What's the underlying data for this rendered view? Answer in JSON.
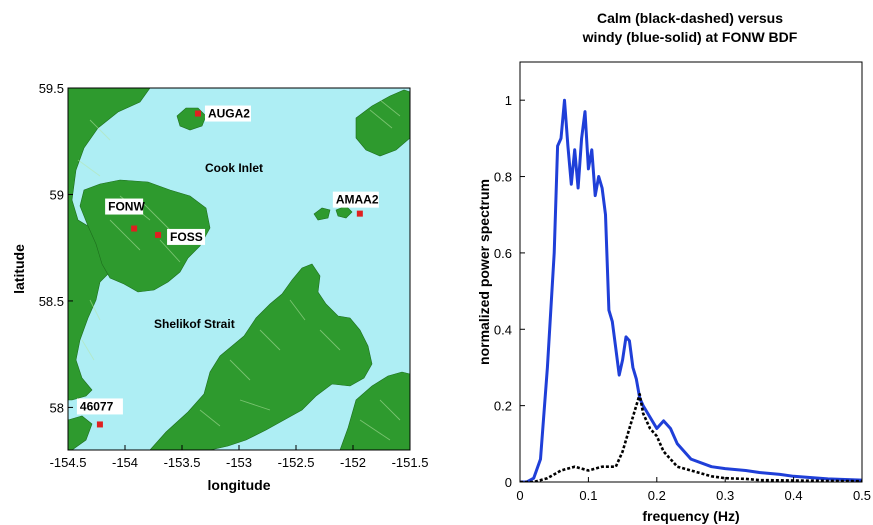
{
  "map": {
    "xlabel": "longitude",
    "ylabel": "latitude",
    "xticks": [
      "-154.5",
      "-154",
      "-153.5",
      "-153",
      "-152.5",
      "-152",
      "-151.5"
    ],
    "yticks": [
      "59.5",
      "59",
      "58.5",
      "58"
    ],
    "xlim": [
      -154.5,
      -151.5
    ],
    "ylim": [
      57.8,
      59.5
    ],
    "water_color": "#aeeef4",
    "land_color": "#2e9a2e",
    "station_color": "#e02020",
    "stations": [
      {
        "name": "AUGA2",
        "lon": -153.36,
        "lat": 59.38
      },
      {
        "name": "AMAA2",
        "lon": -151.94,
        "lat": 58.91
      },
      {
        "name": "FONW",
        "lon": -153.92,
        "lat": 58.84
      },
      {
        "name": "FOSS",
        "lon": -153.71,
        "lat": 58.81
      },
      {
        "name": "46077",
        "lon": -154.22,
        "lat": 57.92
      }
    ],
    "place_labels": [
      "Cook Inlet",
      "Shelikof Strait"
    ]
  },
  "chart_data": {
    "type": "line",
    "title": "Calm (black-dashed) versus windy (blue-solid) at FONW BDF",
    "title_lines": [
      "Calm (black-dashed) versus",
      "windy (blue-solid) at FONW BDF"
    ],
    "xlabel": "frequency (Hz)",
    "ylabel": "normalized power spectrum",
    "xlim": [
      0,
      0.5
    ],
    "ylim": [
      0,
      1.1
    ],
    "xticks": [
      "0",
      "0.1",
      "0.2",
      "0.3",
      "0.4",
      "0.5"
    ],
    "yticks": [
      "0",
      "0.2",
      "0.4",
      "0.6",
      "0.8",
      "1"
    ],
    "grid": false,
    "series": [
      {
        "style": "solid",
        "color": "#1f3fd8",
        "x": [
          0,
          0.01,
          0.02,
          0.03,
          0.04,
          0.05,
          0.055,
          0.06,
          0.065,
          0.07,
          0.075,
          0.08,
          0.085,
          0.09,
          0.095,
          0.1,
          0.105,
          0.11,
          0.115,
          0.12,
          0.125,
          0.13,
          0.135,
          0.14,
          0.145,
          0.15,
          0.155,
          0.16,
          0.165,
          0.17,
          0.175,
          0.18,
          0.19,
          0.2,
          0.21,
          0.22,
          0.23,
          0.25,
          0.28,
          0.3,
          0.33,
          0.35,
          0.38,
          0.4,
          0.45,
          0.5
        ],
        "y": [
          0,
          0.0,
          0.01,
          0.06,
          0.3,
          0.6,
          0.88,
          0.9,
          1.0,
          0.88,
          0.78,
          0.87,
          0.77,
          0.9,
          0.97,
          0.82,
          0.87,
          0.75,
          0.8,
          0.77,
          0.7,
          0.45,
          0.42,
          0.35,
          0.28,
          0.32,
          0.38,
          0.37,
          0.3,
          0.27,
          0.22,
          0.2,
          0.17,
          0.14,
          0.16,
          0.14,
          0.1,
          0.06,
          0.04,
          0.035,
          0.03,
          0.025,
          0.02,
          0.015,
          0.008,
          0.005
        ]
      },
      {
        "style": "dashed",
        "color": "#000000",
        "x": [
          0,
          0.02,
          0.04,
          0.06,
          0.08,
          0.1,
          0.12,
          0.14,
          0.15,
          0.16,
          0.17,
          0.175,
          0.18,
          0.19,
          0.2,
          0.21,
          0.22,
          0.23,
          0.25,
          0.28,
          0.3,
          0.33,
          0.35,
          0.4,
          0.45,
          0.5
        ],
        "y": [
          0,
          0.0,
          0.01,
          0.03,
          0.04,
          0.03,
          0.04,
          0.04,
          0.08,
          0.14,
          0.2,
          0.23,
          0.18,
          0.14,
          0.12,
          0.08,
          0.06,
          0.04,
          0.03,
          0.015,
          0.01,
          0.008,
          0.005,
          0.004,
          0.003,
          0.002
        ]
      }
    ]
  }
}
